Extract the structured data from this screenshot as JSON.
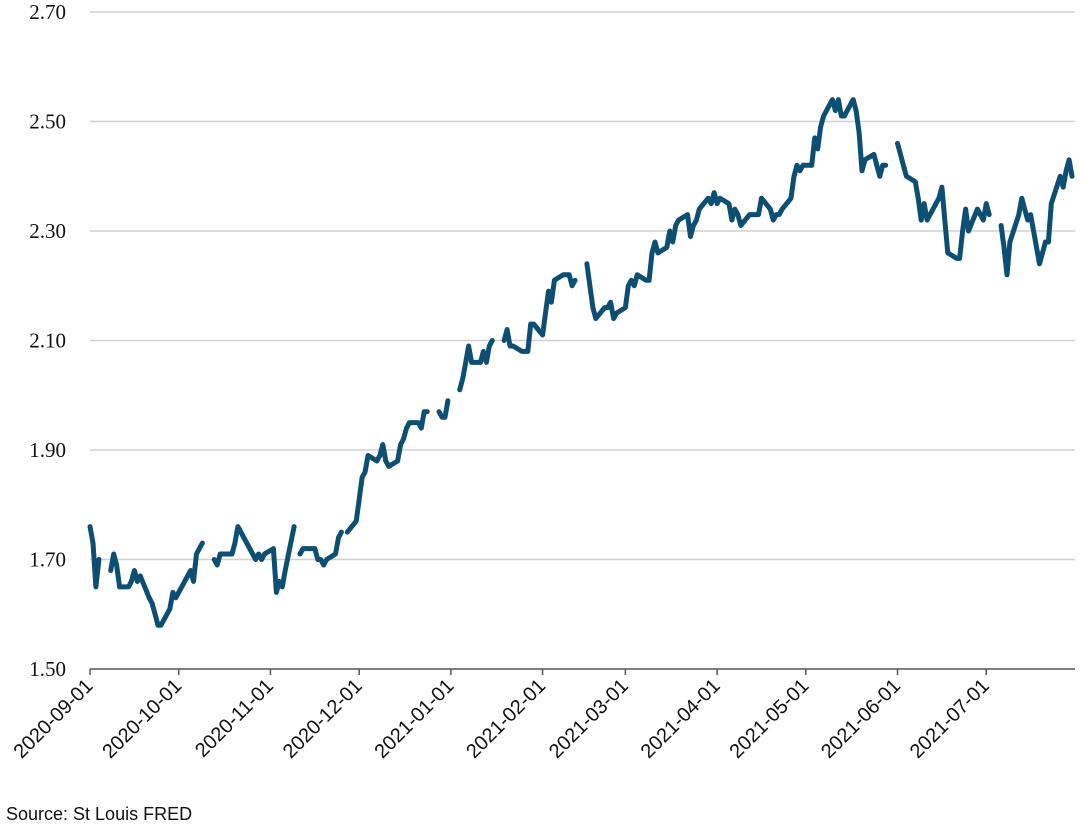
{
  "source": "Source: St Louis FRED",
  "chart_data": {
    "type": "line",
    "x_type": "date",
    "xlim": [
      "2020-09-01",
      "2021-07-31"
    ],
    "ylim": [
      1.5,
      2.7
    ],
    "y_ticks": [
      "1.50",
      "1.70",
      "1.90",
      "2.10",
      "2.30",
      "2.50",
      "2.70"
    ],
    "x_ticks": [
      "2020-09-01",
      "2020-10-01",
      "2020-11-01",
      "2020-12-01",
      "2021-01-01",
      "2021-02-01",
      "2021-03-01",
      "2021-04-01",
      "2021-05-01",
      "2021-06-01",
      "2021-07-01"
    ],
    "grid": "horizontal",
    "line_color": "#0d4f73",
    "grid_color": "#d0d0d0",
    "axis_color": "#555555",
    "segments": [
      [
        [
          "2020-09-01",
          1.76
        ],
        [
          "2020-09-02",
          1.73
        ],
        [
          "2020-09-03",
          1.65
        ],
        [
          "2020-09-04",
          1.7
        ]
      ],
      [
        [
          "2020-09-08",
          1.68
        ],
        [
          "2020-09-09",
          1.71
        ],
        [
          "2020-09-10",
          1.69
        ],
        [
          "2020-09-11",
          1.65
        ],
        [
          "2020-09-14",
          1.65
        ],
        [
          "2020-09-15",
          1.66
        ],
        [
          "2020-09-16",
          1.68
        ],
        [
          "2020-09-17",
          1.66
        ],
        [
          "2020-09-18",
          1.67
        ],
        [
          "2020-09-21",
          1.63
        ],
        [
          "2020-09-22",
          1.62
        ],
        [
          "2020-09-23",
          1.6
        ],
        [
          "2020-09-24",
          1.58
        ],
        [
          "2020-09-25",
          1.58
        ],
        [
          "2020-09-28",
          1.61
        ],
        [
          "2020-09-29",
          1.64
        ],
        [
          "2020-09-30",
          1.63
        ],
        [
          "2020-10-01",
          1.64
        ],
        [
          "2020-10-02",
          1.65
        ],
        [
          "2020-10-05",
          1.68
        ],
        [
          "2020-10-06",
          1.66
        ],
        [
          "2020-10-07",
          1.71
        ],
        [
          "2020-10-08",
          1.72
        ],
        [
          "2020-10-09",
          1.73
        ]
      ],
      [
        [
          "2020-10-13",
          1.7
        ],
        [
          "2020-10-14",
          1.69
        ],
        [
          "2020-10-15",
          1.71
        ],
        [
          "2020-10-16",
          1.71
        ],
        [
          "2020-10-19",
          1.71
        ],
        [
          "2020-10-20",
          1.73
        ],
        [
          "2020-10-21",
          1.76
        ],
        [
          "2020-10-22",
          1.75
        ],
        [
          "2020-10-23",
          1.74
        ],
        [
          "2020-10-26",
          1.71
        ],
        [
          "2020-10-27",
          1.7
        ],
        [
          "2020-10-28",
          1.71
        ],
        [
          "2020-10-29",
          1.7
        ],
        [
          "2020-10-30",
          1.71
        ],
        [
          "2020-11-02",
          1.72
        ],
        [
          "2020-11-03",
          1.64
        ],
        [
          "2020-11-04",
          1.66
        ],
        [
          "2020-11-05",
          1.65
        ],
        [
          "2020-11-06",
          1.68
        ],
        [
          "2020-11-09",
          1.76
        ]
      ],
      [
        [
          "2020-11-11",
          1.71
        ],
        [
          "2020-11-12",
          1.72
        ],
        [
          "2020-11-13",
          1.72
        ],
        [
          "2020-11-16",
          1.72
        ],
        [
          "2020-11-17",
          1.7
        ],
        [
          "2020-11-18",
          1.7
        ],
        [
          "2020-11-19",
          1.69
        ],
        [
          "2020-11-20",
          1.7
        ],
        [
          "2020-11-23",
          1.71
        ],
        [
          "2020-11-24",
          1.74
        ],
        [
          "2020-11-25",
          1.75
        ]
      ],
      [
        [
          "2020-11-27",
          1.75
        ],
        [
          "2020-11-30",
          1.77
        ],
        [
          "2020-12-01",
          1.81
        ],
        [
          "2020-12-02",
          1.85
        ],
        [
          "2020-12-03",
          1.86
        ],
        [
          "2020-12-04",
          1.89
        ],
        [
          "2020-12-07",
          1.88
        ],
        [
          "2020-12-08",
          1.89
        ],
        [
          "2020-12-09",
          1.91
        ],
        [
          "2020-12-10",
          1.88
        ],
        [
          "2020-12-11",
          1.87
        ],
        [
          "2020-12-14",
          1.88
        ],
        [
          "2020-12-15",
          1.91
        ],
        [
          "2020-12-16",
          1.92
        ],
        [
          "2020-12-17",
          1.94
        ],
        [
          "2020-12-18",
          1.95
        ],
        [
          "2020-12-21",
          1.95
        ],
        [
          "2020-12-22",
          1.94
        ],
        [
          "2020-12-23",
          1.97
        ],
        [
          "2020-12-24",
          1.97
        ]
      ],
      [
        [
          "2020-12-28",
          1.97
        ],
        [
          "2020-12-29",
          1.96
        ],
        [
          "2020-12-30",
          1.96
        ],
        [
          "2020-12-31",
          1.99
        ]
      ],
      [
        [
          "2021-01-04",
          2.01
        ],
        [
          "2021-01-05",
          2.03
        ],
        [
          "2021-01-06",
          2.06
        ],
        [
          "2021-01-07",
          2.09
        ],
        [
          "2021-01-08",
          2.06
        ],
        [
          "2021-01-11",
          2.06
        ],
        [
          "2021-01-12",
          2.08
        ],
        [
          "2021-01-13",
          2.06
        ],
        [
          "2021-01-14",
          2.09
        ],
        [
          "2021-01-15",
          2.1
        ]
      ],
      [
        [
          "2021-01-19",
          2.1
        ],
        [
          "2021-01-20",
          2.12
        ],
        [
          "2021-01-21",
          2.09
        ],
        [
          "2021-01-22",
          2.09
        ],
        [
          "2021-01-25",
          2.08
        ],
        [
          "2021-01-26",
          2.08
        ],
        [
          "2021-01-27",
          2.08
        ],
        [
          "2021-01-28",
          2.13
        ],
        [
          "2021-01-29",
          2.13
        ],
        [
          "2021-02-01",
          2.11
        ],
        [
          "2021-02-02",
          2.15
        ],
        [
          "2021-02-03",
          2.19
        ],
        [
          "2021-02-04",
          2.17
        ],
        [
          "2021-02-05",
          2.21
        ],
        [
          "2021-02-08",
          2.22
        ],
        [
          "2021-02-09",
          2.22
        ],
        [
          "2021-02-10",
          2.22
        ],
        [
          "2021-02-11",
          2.2
        ],
        [
          "2021-02-12",
          2.21
        ]
      ],
      [
        [
          "2021-02-16",
          2.24
        ],
        [
          "2021-02-17",
          2.2
        ],
        [
          "2021-02-18",
          2.16
        ],
        [
          "2021-02-19",
          2.14
        ],
        [
          "2021-02-22",
          2.16
        ],
        [
          "2021-02-23",
          2.16
        ],
        [
          "2021-02-24",
          2.17
        ],
        [
          "2021-02-25",
          2.14
        ],
        [
          "2021-02-26",
          2.15
        ],
        [
          "2021-03-01",
          2.16
        ],
        [
          "2021-03-02",
          2.2
        ],
        [
          "2021-03-03",
          2.21
        ],
        [
          "2021-03-04",
          2.2
        ],
        [
          "2021-03-05",
          2.22
        ],
        [
          "2021-03-08",
          2.21
        ],
        [
          "2021-03-09",
          2.21
        ],
        [
          "2021-03-10",
          2.26
        ],
        [
          "2021-03-11",
          2.28
        ],
        [
          "2021-03-12",
          2.26
        ],
        [
          "2021-03-15",
          2.27
        ],
        [
          "2021-03-16",
          2.3
        ],
        [
          "2021-03-17",
          2.28
        ],
        [
          "2021-03-18",
          2.31
        ],
        [
          "2021-03-19",
          2.32
        ],
        [
          "2021-03-22",
          2.33
        ],
        [
          "2021-03-23",
          2.29
        ],
        [
          "2021-03-24",
          2.31
        ],
        [
          "2021-03-25",
          2.32
        ],
        [
          "2021-03-26",
          2.34
        ],
        [
          "2021-03-29",
          2.36
        ],
        [
          "2021-03-30",
          2.35
        ],
        [
          "2021-03-31",
          2.37
        ],
        [
          "2021-04-01",
          2.35
        ],
        [
          "2021-04-02",
          2.36
        ],
        [
          "2021-04-05",
          2.35
        ],
        [
          "2021-04-06",
          2.32
        ],
        [
          "2021-04-07",
          2.34
        ],
        [
          "2021-04-08",
          2.33
        ],
        [
          "2021-04-09",
          2.31
        ],
        [
          "2021-04-12",
          2.33
        ],
        [
          "2021-04-13",
          2.33
        ],
        [
          "2021-04-14",
          2.33
        ],
        [
          "2021-04-15",
          2.33
        ],
        [
          "2021-04-16",
          2.36
        ],
        [
          "2021-04-19",
          2.34
        ],
        [
          "2021-04-20",
          2.32
        ],
        [
          "2021-04-21",
          2.33
        ],
        [
          "2021-04-22",
          2.33
        ],
        [
          "2021-04-23",
          2.34
        ],
        [
          "2021-04-26",
          2.36
        ],
        [
          "2021-04-27",
          2.4
        ],
        [
          "2021-04-28",
          2.42
        ],
        [
          "2021-04-29",
          2.41
        ],
        [
          "2021-04-30",
          2.42
        ],
        [
          "2021-05-03",
          2.42
        ],
        [
          "2021-05-04",
          2.47
        ],
        [
          "2021-05-05",
          2.45
        ],
        [
          "2021-05-06",
          2.49
        ],
        [
          "2021-05-07",
          2.51
        ],
        [
          "2021-05-10",
          2.54
        ],
        [
          "2021-05-11",
          2.52
        ],
        [
          "2021-05-12",
          2.54
        ],
        [
          "2021-05-13",
          2.51
        ],
        [
          "2021-05-14",
          2.51
        ],
        [
          "2021-05-17",
          2.54
        ],
        [
          "2021-05-18",
          2.52
        ],
        [
          "2021-05-19",
          2.48
        ],
        [
          "2021-05-20",
          2.41
        ],
        [
          "2021-05-21",
          2.43
        ],
        [
          "2021-05-24",
          2.44
        ],
        [
          "2021-05-25",
          2.42
        ],
        [
          "2021-05-26",
          2.4
        ],
        [
          "2021-05-27",
          2.42
        ],
        [
          "2021-05-28",
          2.42
        ]
      ],
      [
        [
          "2021-06-01",
          2.46
        ],
        [
          "2021-06-02",
          2.44
        ],
        [
          "2021-06-03",
          2.42
        ],
        [
          "2021-06-04",
          2.4
        ],
        [
          "2021-06-07",
          2.39
        ],
        [
          "2021-06-08",
          2.36
        ],
        [
          "2021-06-09",
          2.32
        ],
        [
          "2021-06-10",
          2.35
        ],
        [
          "2021-06-11",
          2.32
        ],
        [
          "2021-06-14",
          2.35
        ],
        [
          "2021-06-15",
          2.36
        ],
        [
          "2021-06-16",
          2.38
        ],
        [
          "2021-06-17",
          2.32
        ],
        [
          "2021-06-18",
          2.26
        ],
        [
          "2021-06-21",
          2.25
        ],
        [
          "2021-06-22",
          2.25
        ],
        [
          "2021-06-23",
          2.3
        ],
        [
          "2021-06-24",
          2.34
        ],
        [
          "2021-06-25",
          2.3
        ],
        [
          "2021-06-28",
          2.34
        ],
        [
          "2021-06-29",
          2.33
        ],
        [
          "2021-06-30",
          2.32
        ],
        [
          "2021-07-01",
          2.35
        ],
        [
          "2021-07-02",
          2.33
        ]
      ],
      [
        [
          "2021-07-06",
          2.31
        ],
        [
          "2021-07-07",
          2.27
        ],
        [
          "2021-07-08",
          2.22
        ],
        [
          "2021-07-09",
          2.28
        ],
        [
          "2021-07-12",
          2.33
        ],
        [
          "2021-07-13",
          2.36
        ],
        [
          "2021-07-14",
          2.34
        ],
        [
          "2021-07-15",
          2.32
        ],
        [
          "2021-07-16",
          2.33
        ],
        [
          "2021-07-19",
          2.24
        ],
        [
          "2021-07-20",
          2.26
        ],
        [
          "2021-07-21",
          2.28
        ],
        [
          "2021-07-22",
          2.28
        ],
        [
          "2021-07-23",
          2.35
        ],
        [
          "2021-07-26",
          2.4
        ],
        [
          "2021-07-27",
          2.38
        ],
        [
          "2021-07-28",
          2.41
        ],
        [
          "2021-07-29",
          2.43
        ],
        [
          "2021-07-30",
          2.4
        ]
      ]
    ]
  }
}
